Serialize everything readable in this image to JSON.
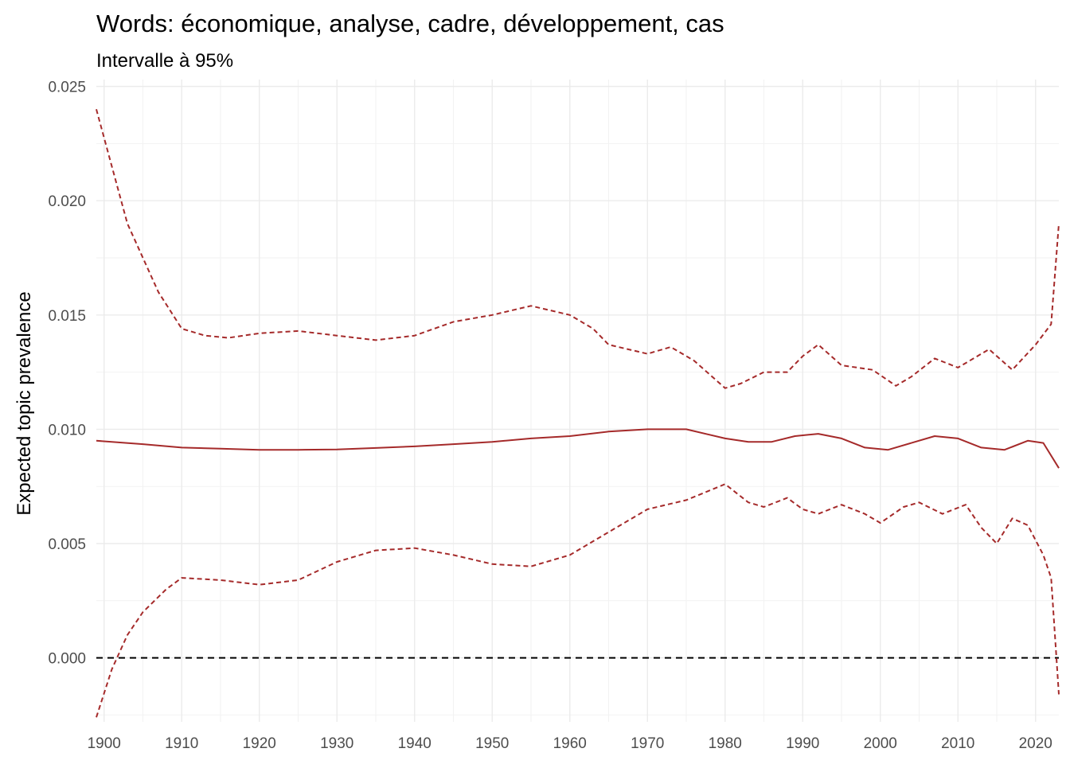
{
  "chart_data": {
    "type": "line",
    "title": "Words: économique, analyse, cadre, développement, cas",
    "subtitle": "Intervalle à 95%",
    "xlabel": "",
    "ylabel": "Expected topic prevalence",
    "xlim": [
      1899,
      2023
    ],
    "ylim": [
      -0.0028,
      0.0253
    ],
    "x_ticks": [
      1900,
      1910,
      1920,
      1930,
      1940,
      1950,
      1960,
      1970,
      1980,
      1990,
      2000,
      2010,
      2020
    ],
    "x_tick_labels": [
      "1900",
      "1910",
      "1920",
      "1930",
      "1940",
      "1950",
      "1960",
      "1970",
      "1980",
      "1990",
      "2000",
      "2010",
      "2020"
    ],
    "y_ticks": [
      0.0,
      0.005,
      0.01,
      0.015,
      0.02,
      0.025
    ],
    "y_tick_labels": [
      "0.000",
      "0.005",
      "0.010",
      "0.015",
      "0.020",
      "0.025"
    ],
    "grid": true,
    "reference_line": {
      "y": 0.0,
      "style": "dashed",
      "color": "#000000"
    },
    "series": [
      {
        "role": "estimate",
        "style": "solid",
        "color": "#a52a2a",
        "points": [
          [
            1899,
            0.0095
          ],
          [
            1905,
            0.00935
          ],
          [
            1910,
            0.0092
          ],
          [
            1915,
            0.00915
          ],
          [
            1920,
            0.0091
          ],
          [
            1925,
            0.0091
          ],
          [
            1930,
            0.00912
          ],
          [
            1935,
            0.00918
          ],
          [
            1940,
            0.00925
          ],
          [
            1945,
            0.00935
          ],
          [
            1950,
            0.00945
          ],
          [
            1955,
            0.0096
          ],
          [
            1960,
            0.0097
          ],
          [
            1965,
            0.0099
          ],
          [
            1970,
            0.01
          ],
          [
            1975,
            0.01
          ],
          [
            1980,
            0.0096
          ],
          [
            1983,
            0.00945
          ],
          [
            1986,
            0.00945
          ],
          [
            1989,
            0.0097
          ],
          [
            1992,
            0.0098
          ],
          [
            1995,
            0.0096
          ],
          [
            1998,
            0.0092
          ],
          [
            2001,
            0.0091
          ],
          [
            2004,
            0.0094
          ],
          [
            2007,
            0.0097
          ],
          [
            2010,
            0.0096
          ],
          [
            2013,
            0.0092
          ],
          [
            2016,
            0.0091
          ],
          [
            2019,
            0.0095
          ],
          [
            2021,
            0.0094
          ],
          [
            2023,
            0.0083
          ]
        ]
      },
      {
        "role": "upper",
        "style": "dashed",
        "color": "#a52a2a",
        "points": [
          [
            1899,
            0.024
          ],
          [
            1901,
            0.0215
          ],
          [
            1903,
            0.019
          ],
          [
            1905,
            0.0175
          ],
          [
            1907,
            0.016
          ],
          [
            1910,
            0.0144
          ],
          [
            1913,
            0.0141
          ],
          [
            1916,
            0.014
          ],
          [
            1920,
            0.0142
          ],
          [
            1925,
            0.0143
          ],
          [
            1930,
            0.0141
          ],
          [
            1935,
            0.0139
          ],
          [
            1940,
            0.0141
          ],
          [
            1945,
            0.0147
          ],
          [
            1950,
            0.015
          ],
          [
            1955,
            0.0154
          ],
          [
            1960,
            0.015
          ],
          [
            1963,
            0.0144
          ],
          [
            1965,
            0.0137
          ],
          [
            1970,
            0.0133
          ],
          [
            1973,
            0.0136
          ],
          [
            1976,
            0.013
          ],
          [
            1980,
            0.0118
          ],
          [
            1982,
            0.012
          ],
          [
            1985,
            0.0125
          ],
          [
            1988,
            0.0125
          ],
          [
            1990,
            0.0132
          ],
          [
            1992,
            0.0137
          ],
          [
            1995,
            0.0128
          ],
          [
            1999,
            0.0126
          ],
          [
            2002,
            0.0119
          ],
          [
            2004,
            0.0123
          ],
          [
            2007,
            0.0131
          ],
          [
            2010,
            0.0127
          ],
          [
            2014,
            0.0135
          ],
          [
            2017,
            0.0126
          ],
          [
            2020,
            0.0137
          ],
          [
            2022,
            0.0146
          ],
          [
            2023,
            0.019
          ]
        ]
      },
      {
        "role": "lower",
        "style": "dashed",
        "color": "#a52a2a",
        "points": [
          [
            1899,
            -0.0026
          ],
          [
            1901,
            -0.0005
          ],
          [
            1903,
            0.001
          ],
          [
            1905,
            0.002
          ],
          [
            1908,
            0.003
          ],
          [
            1910,
            0.0035
          ],
          [
            1915,
            0.0034
          ],
          [
            1920,
            0.0032
          ],
          [
            1925,
            0.0034
          ],
          [
            1930,
            0.0042
          ],
          [
            1935,
            0.0047
          ],
          [
            1940,
            0.0048
          ],
          [
            1945,
            0.0045
          ],
          [
            1950,
            0.0041
          ],
          [
            1955,
            0.004
          ],
          [
            1960,
            0.0045
          ],
          [
            1965,
            0.0055
          ],
          [
            1970,
            0.0065
          ],
          [
            1975,
            0.0069
          ],
          [
            1980,
            0.0076
          ],
          [
            1983,
            0.0068
          ],
          [
            1985,
            0.0066
          ],
          [
            1988,
            0.007
          ],
          [
            1990,
            0.0065
          ],
          [
            1992,
            0.0063
          ],
          [
            1995,
            0.0067
          ],
          [
            1998,
            0.0063
          ],
          [
            2000,
            0.0059
          ],
          [
            2003,
            0.0066
          ],
          [
            2005,
            0.0068
          ],
          [
            2008,
            0.0063
          ],
          [
            2011,
            0.0067
          ],
          [
            2013,
            0.0057
          ],
          [
            2015,
            0.005
          ],
          [
            2017,
            0.0061
          ],
          [
            2019,
            0.0058
          ],
          [
            2021,
            0.0045
          ],
          [
            2022,
            0.0035
          ],
          [
            2023,
            -0.0016
          ]
        ]
      }
    ]
  }
}
